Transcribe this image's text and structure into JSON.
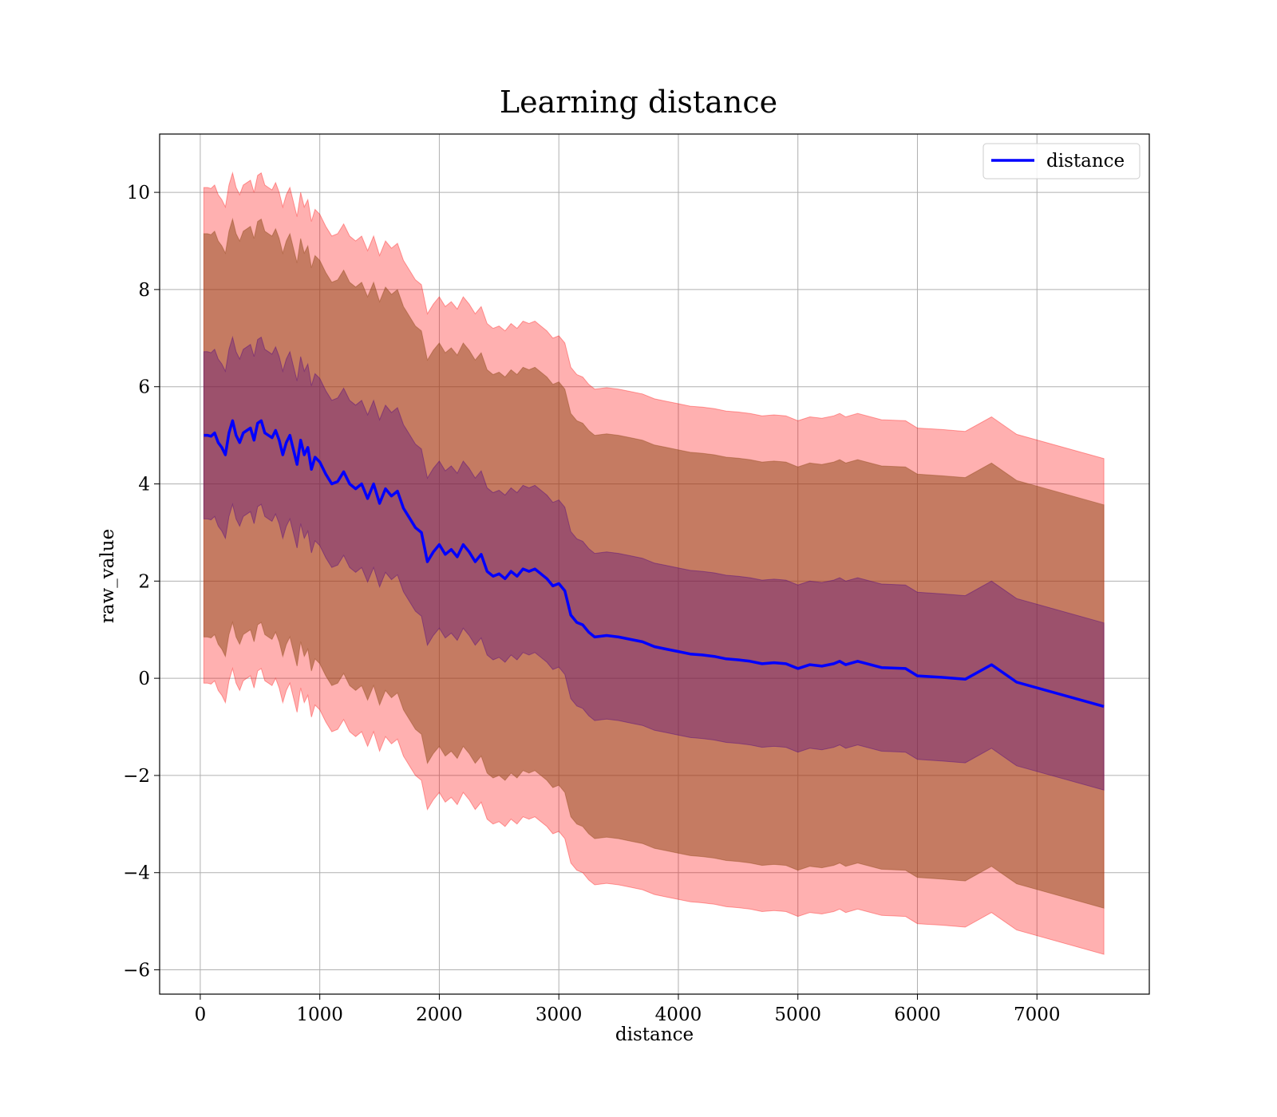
{
  "chart_data": {
    "type": "line",
    "title": "Learning distance",
    "xlabel": "distance",
    "ylabel": "raw_value",
    "xlim": [
      -340,
      7940
    ],
    "ylim": [
      -6.5,
      11.2
    ],
    "xticks": [
      0,
      1000,
      2000,
      3000,
      4000,
      5000,
      6000,
      7000
    ],
    "yticks": [
      -6,
      -4,
      -2,
      0,
      2,
      4,
      6,
      8,
      10
    ],
    "grid": true,
    "legend": {
      "position": "top-right",
      "entries": [
        "distance"
      ]
    },
    "colors": {
      "line": "#0000ff",
      "band_outer": "#ff0000",
      "band_middle": "#8b4513",
      "band_inner": "#4b0082"
    },
    "x": [
      30,
      60,
      90,
      120,
      150,
      180,
      210,
      240,
      270,
      300,
      330,
      360,
      390,
      420,
      450,
      480,
      510,
      540,
      570,
      600,
      630,
      660,
      690,
      720,
      750,
      780,
      810,
      840,
      870,
      900,
      930,
      960,
      1000,
      1050,
      1100,
      1150,
      1200,
      1250,
      1300,
      1350,
      1400,
      1450,
      1500,
      1550,
      1600,
      1650,
      1700,
      1750,
      1800,
      1850,
      1900,
      1950,
      2000,
      2050,
      2100,
      2150,
      2200,
      2250,
      2300,
      2350,
      2400,
      2450,
      2500,
      2550,
      2600,
      2650,
      2700,
      2750,
      2800,
      2850,
      2900,
      2950,
      3000,
      3050,
      3100,
      3150,
      3200,
      3250,
      3300,
      3400,
      3500,
      3600,
      3700,
      3800,
      3900,
      4000,
      4100,
      4200,
      4300,
      4400,
      4500,
      4600,
      4700,
      4800,
      4900,
      5000,
      5100,
      5200,
      5300,
      5350,
      5400,
      5500,
      5700,
      5900,
      6000,
      6200,
      6400,
      6620,
      6830,
      7560
    ],
    "series": [
      {
        "name": "distance",
        "values": [
          5.0,
          5.0,
          4.98,
          5.05,
          4.85,
          4.75,
          4.6,
          5.05,
          5.3,
          5.0,
          4.85,
          5.05,
          5.1,
          5.15,
          4.9,
          5.25,
          5.3,
          5.05,
          5.0,
          4.95,
          5.1,
          4.9,
          4.6,
          4.85,
          5.0,
          4.7,
          4.4,
          4.9,
          4.6,
          4.75,
          4.3,
          4.55,
          4.45,
          4.2,
          4.0,
          4.05,
          4.25,
          4.0,
          3.9,
          4.0,
          3.7,
          4.0,
          3.6,
          3.9,
          3.75,
          3.85,
          3.5,
          3.3,
          3.1,
          3.0,
          2.4,
          2.6,
          2.75,
          2.55,
          2.65,
          2.5,
          2.75,
          2.6,
          2.4,
          2.55,
          2.2,
          2.1,
          2.15,
          2.05,
          2.2,
          2.1,
          2.25,
          2.2,
          2.25,
          2.15,
          2.05,
          1.9,
          1.95,
          1.8,
          1.3,
          1.15,
          1.1,
          0.95,
          0.85,
          0.88,
          0.85,
          0.8,
          0.75,
          0.65,
          0.6,
          0.55,
          0.5,
          0.48,
          0.45,
          0.4,
          0.38,
          0.35,
          0.3,
          0.32,
          0.3,
          0.2,
          0.28,
          0.25,
          0.3,
          0.35,
          0.28,
          0.35,
          0.22,
          0.2,
          0.05,
          0.02,
          -0.02,
          0.28,
          -0.08,
          -0.58
        ]
      }
    ],
    "band_offsets": {
      "inner": 1.72,
      "middle": 4.15,
      "outer": 5.1
    }
  }
}
